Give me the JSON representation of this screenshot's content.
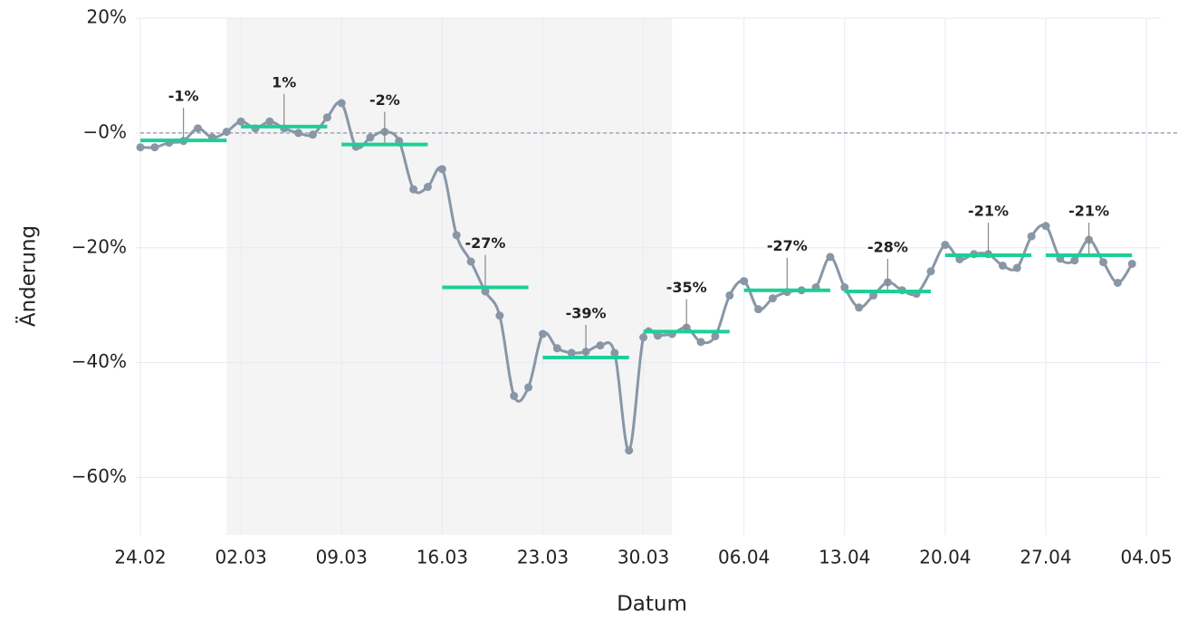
{
  "chart_data": {
    "type": "line",
    "x_label": "Datum",
    "y_label": "Änderung",
    "x": [
      "24.02",
      "25.02",
      "26.02",
      "27.02",
      "28.02",
      "29.02",
      "01.03",
      "02.03",
      "03.03",
      "04.03",
      "05.03",
      "06.03",
      "07.03",
      "08.03",
      "09.03",
      "10.03",
      "11.03",
      "12.03",
      "13.03",
      "14.03",
      "15.03",
      "16.03",
      "17.03",
      "18.03",
      "19.03",
      "20.03",
      "21.03",
      "22.03",
      "23.03",
      "24.03",
      "25.03",
      "26.03",
      "27.03",
      "28.03",
      "29.03",
      "30.03",
      "31.03",
      "01.04",
      "02.04",
      "03.04",
      "04.04",
      "05.04",
      "06.04",
      "07.04",
      "08.04",
      "09.04",
      "10.04",
      "11.04",
      "12.04",
      "13.04",
      "14.04",
      "15.04",
      "16.04",
      "17.04",
      "18.04",
      "19.04",
      "20.04",
      "21.04",
      "22.04",
      "23.04",
      "24.04",
      "25.04",
      "26.04",
      "27.04",
      "28.04",
      "29.04",
      "30.04",
      "01.05",
      "02.05",
      "03.05"
    ],
    "series": [
      {
        "color": "#8996a6",
        "values": [
          -2.5,
          -2.5,
          -1.7,
          -1.4,
          0.8,
          -0.8,
          0.2,
          2.0,
          0.8,
          2.0,
          0.8,
          0,
          -0.3,
          2.7,
          5.2,
          -2.4,
          -0.8,
          0.2,
          -1.4,
          -9.8,
          -9.4,
          -6.3,
          -17.8,
          -22.4,
          -27.6,
          -31.8,
          -45.8,
          -44.3,
          -35,
          -37.5,
          -38.3,
          -38.1,
          -37,
          -38.3,
          -55.3,
          -35.6,
          -35.3,
          -35,
          -33.9,
          -36.4,
          -35.4,
          -28.3,
          -25.8,
          -30.7,
          -28.8,
          -27.7,
          -27.4,
          -26.9,
          -21.6,
          -26.9,
          -30.4,
          -28.3,
          -26,
          -27.4,
          -28,
          -24.1,
          -19.5,
          -22,
          -21.1,
          -21.1,
          -23.1,
          -23.5,
          -18,
          -16.2,
          -21.9,
          -22.2,
          -18.6,
          -22.5,
          -26.1,
          -22.8
        ]
      }
    ],
    "weekly": {
      "color": "#1ccf96",
      "start": [
        "24.02",
        "02.03",
        "09.03",
        "16.03",
        "23.03",
        "30.03",
        "06.04",
        "13.04",
        "20.04",
        "27.04"
      ],
      "end": [
        "01.03",
        "08.03",
        "15.03",
        "22.03",
        "29.03",
        "05.04",
        "12.04",
        "19.04",
        "26.04",
        "03.05"
      ],
      "values": [
        -1.3,
        1.1,
        -2.0,
        -26.9,
        -39.1,
        -34.6,
        -27.4,
        -27.6,
        -21.3,
        -21.3
      ],
      "value_labels": [
        "-1%",
        "1%",
        "-2%",
        "-27%",
        "-39%",
        "-35%",
        "-27%",
        "-28%",
        "-21%",
        "-21%"
      ]
    },
    "shaded": [
      "01.03",
      "01.04"
    ],
    "hline": 0,
    "xlim": [
      "24.02",
      "05.05"
    ],
    "xticks": [
      "24.02",
      "02.03",
      "09.03",
      "16.03",
      "23.03",
      "30.03",
      "06.04",
      "13.04",
      "20.04",
      "27.04",
      "04.05"
    ],
    "ylim": [
      -70,
      20
    ],
    "yticks": [
      {
        "value": -60,
        "label": "−60%"
      },
      {
        "value": -40,
        "label": "−40%"
      },
      {
        "value": -20,
        "label": "−20%"
      },
      {
        "value": 0,
        "label": "−0%"
      },
      {
        "value": 20,
        "label": "20%"
      }
    ],
    "grid": true
  }
}
